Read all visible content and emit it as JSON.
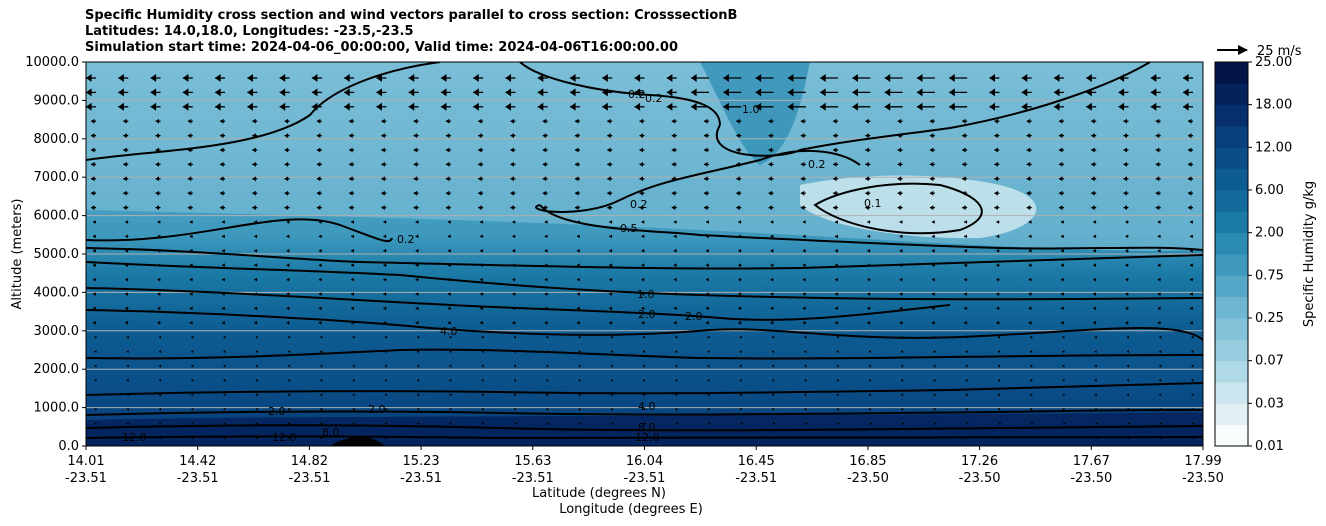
{
  "chart_data": {
    "type": "contour",
    "title_lines": [
      "Specific Humidity cross section and wind vectors parallel to cross section: CrosssectionB",
      "Latitudes: 14.0,18.0, Longitudes: -23.5,-23.5",
      "Simulation start time: 2024-04-06_00:00:00, Valid time: 2024-04-06T16:00:00.00"
    ],
    "ylabel": "Altitude (meters)",
    "xlabel_line1": "Latitude (degrees N)",
    "xlabel_line2": "Longitude (degrees E)",
    "ylim": [
      0,
      10000
    ],
    "y_ticks": [
      "0.0",
      "1000.0",
      "2000.0",
      "3000.0",
      "4000.0",
      "5000.0",
      "6000.0",
      "7000.0",
      "8000.0",
      "9000.0",
      "10000.0"
    ],
    "x_ticks": [
      {
        "lat": "14.01",
        "lon": "-23.51"
      },
      {
        "lat": "14.42",
        "lon": "-23.51"
      },
      {
        "lat": "14.82",
        "lon": "-23.51"
      },
      {
        "lat": "15.23",
        "lon": "-23.51"
      },
      {
        "lat": "15.63",
        "lon": "-23.51"
      },
      {
        "lat": "16.04",
        "lon": "-23.51"
      },
      {
        "lat": "16.45",
        "lon": "-23.51"
      },
      {
        "lat": "16.85",
        "lon": "-23.50"
      },
      {
        "lat": "17.26",
        "lon": "-23.50"
      },
      {
        "lat": "17.67",
        "lon": "-23.50"
      },
      {
        "lat": "17.99",
        "lon": "-23.50"
      }
    ],
    "colorbar": {
      "label": "Specific Humidity g/kg",
      "ticks": [
        "0.01",
        "0.03",
        "0.07",
        "0.25",
        "0.75",
        "2.00",
        "6.00",
        "12.00",
        "18.00",
        "25.00"
      ],
      "colors": [
        "#f7fcfd",
        "#e3f0f3",
        "#cbe6ee",
        "#b0d9e8",
        "#98cde0",
        "#84c2da",
        "#6fb6d2",
        "#56a8c8",
        "#3e99bd",
        "#2a8ab2",
        "#1b7aa6",
        "#126b9c",
        "#0d5c92",
        "#0a4e88",
        "#083f7c",
        "#06306d",
        "#04225c",
        "#021448"
      ]
    },
    "quiver_key": "25 m/s",
    "contour_labels": [
      "0.1",
      "0.2",
      "0.2",
      "0.2",
      "0.2",
      "0.2",
      "0.5",
      "1.0",
      "1.0",
      "2.0",
      "2.0",
      "4.0",
      "4.0",
      "8.0",
      "8.0",
      "12.0",
      "12.0",
      "12.0",
      "2.0",
      "2.0"
    ]
  }
}
